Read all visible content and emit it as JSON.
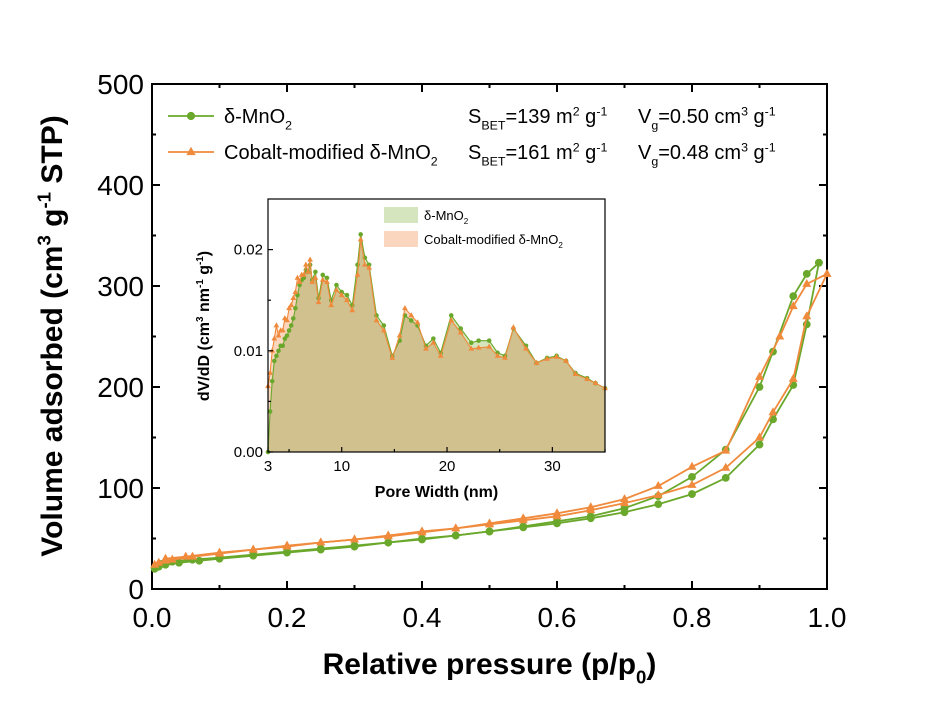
{
  "chart_data": [
    {
      "type": "line",
      "role": "main",
      "xlabel_main": "Relative pressure (p/p",
      "xlabel_sub": "0",
      "xlabel_tail": ")",
      "ylabel_parts": [
        "Volume adsorbed (cm",
        "3",
        " g",
        "-1",
        " STP)"
      ],
      "xlim": [
        0.0,
        1.0
      ],
      "ylim": [
        0,
        500
      ],
      "xticks": [
        "0.0",
        "0.2",
        "0.4",
        "0.6",
        "0.8",
        "1.0"
      ],
      "yticks": [
        "0",
        "100",
        "200",
        "300",
        "400",
        "500"
      ],
      "colors": {
        "green": "#6aa82c",
        "orange": "#f08a3c"
      },
      "legend": {
        "placement": "top-left",
        "rows": [
          {
            "label_main": "δ-MnO",
            "label_sub": "2",
            "sbet": [
              "S",
              "BET",
              "=139 m",
              "2",
              " g",
              "-1"
            ],
            "vg": [
              "V",
              "g",
              "=0.50 cm",
              "3",
              " g",
              "-1"
            ]
          },
          {
            "label_main": "Cobalt-modified δ-MnO",
            "label_sub": "2",
            "sbet": [
              "S",
              "BET",
              "=161 m",
              "2",
              " g",
              "-1"
            ],
            "vg": [
              "V",
              "g",
              "=0.48 cm",
              "3",
              " g",
              "-1"
            ]
          }
        ]
      },
      "series": [
        {
          "marker": "circle",
          "color": "#6aa82c",
          "adsorption": [
            [
              0.004,
              20
            ],
            [
              0.01,
              22
            ],
            [
              0.02,
              24
            ],
            [
              0.04,
              26
            ],
            [
              0.07,
              28
            ],
            [
              0.1,
              30
            ],
            [
              0.15,
              33
            ],
            [
              0.2,
              36
            ],
            [
              0.25,
              39
            ],
            [
              0.3,
              42
            ],
            [
              0.35,
              46
            ],
            [
              0.4,
              49
            ],
            [
              0.45,
              53
            ],
            [
              0.5,
              57
            ],
            [
              0.55,
              61
            ],
            [
              0.6,
              65
            ],
            [
              0.65,
              70
            ],
            [
              0.7,
              76
            ],
            [
              0.75,
              84
            ],
            [
              0.8,
              94
            ],
            [
              0.85,
              110
            ],
            [
              0.9,
              143
            ],
            [
              0.92,
              168
            ],
            [
              0.95,
              202
            ],
            [
              0.97,
              262
            ],
            [
              0.988,
              323
            ]
          ],
          "desorption": [
            [
              0.988,
              323
            ],
            [
              0.97,
              312
            ],
            [
              0.95,
              290
            ],
            [
              0.92,
              235
            ],
            [
              0.9,
              200
            ],
            [
              0.85,
              138
            ],
            [
              0.8,
              111
            ],
            [
              0.75,
              92
            ],
            [
              0.7,
              80
            ],
            [
              0.65,
              72
            ],
            [
              0.6,
              67
            ],
            [
              0.55,
              62
            ],
            [
              0.5,
              57
            ],
            [
              0.45,
              53
            ],
            [
              0.4,
              50
            ],
            [
              0.35,
              46
            ],
            [
              0.3,
              43
            ],
            [
              0.25,
              40
            ],
            [
              0.2,
              37
            ],
            [
              0.15,
              34
            ],
            [
              0.1,
              31
            ],
            [
              0.06,
              29
            ],
            [
              0.03,
              27
            ],
            [
              0.015,
              25
            ]
          ]
        },
        {
          "marker": "triangle",
          "color": "#f08a3c",
          "adsorption": [
            [
              0.004,
              24
            ],
            [
              0.01,
              26
            ],
            [
              0.02,
              28
            ],
            [
              0.03,
              29
            ],
            [
              0.06,
              32
            ],
            [
              0.1,
              35
            ],
            [
              0.15,
              39
            ],
            [
              0.2,
              42
            ],
            [
              0.25,
              46
            ],
            [
              0.3,
              49
            ],
            [
              0.35,
              52
            ],
            [
              0.4,
              56
            ],
            [
              0.45,
              60
            ],
            [
              0.5,
              64
            ],
            [
              0.55,
              68
            ],
            [
              0.6,
              72
            ],
            [
              0.65,
              78
            ],
            [
              0.7,
              85
            ],
            [
              0.75,
              93
            ],
            [
              0.8,
              103
            ],
            [
              0.85,
              120
            ],
            [
              0.9,
              150
            ],
            [
              0.92,
              175
            ],
            [
              0.95,
              208
            ],
            [
              0.97,
              270
            ],
            [
              1.0,
              312
            ]
          ],
          "desorption": [
            [
              1.0,
              312
            ],
            [
              0.97,
              302
            ],
            [
              0.95,
              280
            ],
            [
              0.93,
              250
            ],
            [
              0.9,
              210
            ],
            [
              0.85,
              137
            ],
            [
              0.8,
              121
            ],
            [
              0.75,
              102
            ],
            [
              0.7,
              89
            ],
            [
              0.65,
              81
            ],
            [
              0.6,
              75
            ],
            [
              0.55,
              70
            ],
            [
              0.5,
              65
            ],
            [
              0.45,
              60
            ],
            [
              0.4,
              57
            ],
            [
              0.35,
              53
            ],
            [
              0.3,
              49
            ],
            [
              0.25,
              46
            ],
            [
              0.2,
              43
            ],
            [
              0.15,
              39
            ],
            [
              0.1,
              36
            ],
            [
              0.05,
              32
            ],
            [
              0.02,
              30
            ]
          ]
        }
      ]
    },
    {
      "type": "area",
      "role": "inset",
      "xlabel": "Pore Width (nm)",
      "ylabel_parts": [
        "dV/dD (cm",
        "3",
        " nm",
        "-1",
        " g",
        "-1",
        ")"
      ],
      "xlim": [
        3,
        35
      ],
      "ylim": [
        0,
        0.025
      ],
      "xticks": [
        "3",
        "10",
        "20",
        "30"
      ],
      "yticks": [
        "0.00",
        "0.01",
        "0.02"
      ],
      "legend": {
        "placement": "top-right",
        "entries": [
          {
            "label_main": "δ-MnO",
            "label_sub": "2",
            "fill": "#d5e6bf"
          },
          {
            "label_main": "Cobalt-modified δ-MnO",
            "label_sub": "2",
            "fill": "#fad6bf"
          }
        ]
      },
      "series": [
        {
          "color": "#6aa82c",
          "fill": "#d5e6bf",
          "points": [
            [
              3.0,
              0.0
            ],
            [
              3.2,
              0.004
            ],
            [
              3.4,
              0.007
            ],
            [
              3.6,
              0.009
            ],
            [
              3.8,
              0.0095
            ],
            [
              4.0,
              0.01
            ],
            [
              4.2,
              0.0105
            ],
            [
              4.4,
              0.0105
            ],
            [
              4.6,
              0.0112
            ],
            [
              4.8,
              0.0115
            ],
            [
              5.0,
              0.012
            ],
            [
              5.2,
              0.0125
            ],
            [
              5.4,
              0.0132
            ],
            [
              5.6,
              0.0142
            ],
            [
              5.8,
              0.0155
            ],
            [
              6.0,
              0.0165
            ],
            [
              6.2,
              0.017
            ],
            [
              6.4,
              0.0172
            ],
            [
              6.6,
              0.018
            ],
            [
              6.8,
              0.0178
            ],
            [
              7.0,
              0.0185
            ],
            [
              7.2,
              0.017
            ],
            [
              7.5,
              0.0178
            ],
            [
              7.8,
              0.0152
            ],
            [
              8.2,
              0.0175
            ],
            [
              8.6,
              0.0172
            ],
            [
              9.0,
              0.015
            ],
            [
              9.5,
              0.0165
            ],
            [
              10.0,
              0.0158
            ],
            [
              10.5,
              0.0155
            ],
            [
              11.0,
              0.0145
            ],
            [
              11.5,
              0.0185
            ],
            [
              11.8,
              0.0215
            ],
            [
              12.2,
              0.0192
            ],
            [
              12.6,
              0.0185
            ],
            [
              13.3,
              0.0135
            ],
            [
              14.0,
              0.0125
            ],
            [
              14.8,
              0.0095
            ],
            [
              15.5,
              0.011
            ],
            [
              16.0,
              0.0135
            ],
            [
              16.6,
              0.013
            ],
            [
              17.2,
              0.0125
            ],
            [
              18.0,
              0.0105
            ],
            [
              18.7,
              0.0112
            ],
            [
              19.4,
              0.0098
            ],
            [
              20.4,
              0.0135
            ],
            [
              21.3,
              0.0122
            ],
            [
              22.3,
              0.0108
            ],
            [
              23.0,
              0.011
            ],
            [
              24.0,
              0.011
            ],
            [
              24.8,
              0.0098
            ],
            [
              25.5,
              0.0095
            ],
            [
              26.3,
              0.0122
            ],
            [
              27.5,
              0.0105
            ],
            [
              28.5,
              0.0088
            ],
            [
              29.5,
              0.0093
            ],
            [
              30.4,
              0.0095
            ],
            [
              31.3,
              0.009
            ],
            [
              32.2,
              0.0078
            ],
            [
              33.3,
              0.0073
            ],
            [
              34.1,
              0.0068
            ],
            [
              35.0,
              0.0063
            ]
          ]
        },
        {
          "color": "#f08a3c",
          "fill": "#fad6bf",
          "points": [
            [
              3.0,
              0.0065
            ],
            [
              3.2,
              0.0078
            ],
            [
              3.4,
              0.01
            ],
            [
              3.6,
              0.0112
            ],
            [
              3.8,
              0.0125
            ],
            [
              4.0,
              0.0115
            ],
            [
              4.2,
              0.012
            ],
            [
              4.4,
              0.012
            ],
            [
              4.6,
              0.0132
            ],
            [
              4.8,
              0.013
            ],
            [
              5.0,
              0.0142
            ],
            [
              5.2,
              0.0145
            ],
            [
              5.4,
              0.0152
            ],
            [
              5.6,
              0.0158
            ],
            [
              5.8,
              0.0172
            ],
            [
              6.0,
              0.0168
            ],
            [
              6.2,
              0.0175
            ],
            [
              6.4,
              0.0175
            ],
            [
              6.6,
              0.0185
            ],
            [
              6.8,
              0.0178
            ],
            [
              7.0,
              0.019
            ],
            [
              7.2,
              0.0168
            ],
            [
              7.5,
              0.0172
            ],
            [
              7.8,
              0.0148
            ],
            [
              8.2,
              0.017
            ],
            [
              8.6,
              0.0168
            ],
            [
              9.0,
              0.0145
            ],
            [
              9.5,
              0.016
            ],
            [
              10.0,
              0.0155
            ],
            [
              10.5,
              0.015
            ],
            [
              11.0,
              0.014
            ],
            [
              11.5,
              0.0175
            ],
            [
              11.8,
              0.021
            ],
            [
              12.2,
              0.0185
            ],
            [
              12.6,
              0.0182
            ],
            [
              13.3,
              0.013
            ],
            [
              14.0,
              0.012
            ],
            [
              14.8,
              0.0093
            ],
            [
              15.5,
              0.0115
            ],
            [
              16.0,
              0.0142
            ],
            [
              16.6,
              0.0135
            ],
            [
              17.2,
              0.0128
            ],
            [
              18.0,
              0.0102
            ],
            [
              18.7,
              0.0108
            ],
            [
              19.4,
              0.0095
            ],
            [
              20.4,
              0.013
            ],
            [
              21.3,
              0.0118
            ],
            [
              22.3,
              0.0102
            ],
            [
              23.0,
              0.0103
            ],
            [
              24.0,
              0.0104
            ],
            [
              24.8,
              0.0095
            ],
            [
              25.5,
              0.0093
            ],
            [
              26.3,
              0.0123
            ],
            [
              27.5,
              0.0102
            ],
            [
              28.5,
              0.0088
            ],
            [
              29.5,
              0.0092
            ],
            [
              30.4,
              0.0094
            ],
            [
              31.3,
              0.009
            ],
            [
              32.2,
              0.0077
            ],
            [
              33.3,
              0.0072
            ],
            [
              34.1,
              0.0068
            ],
            [
              35.0,
              0.0063
            ]
          ]
        }
      ]
    }
  ]
}
